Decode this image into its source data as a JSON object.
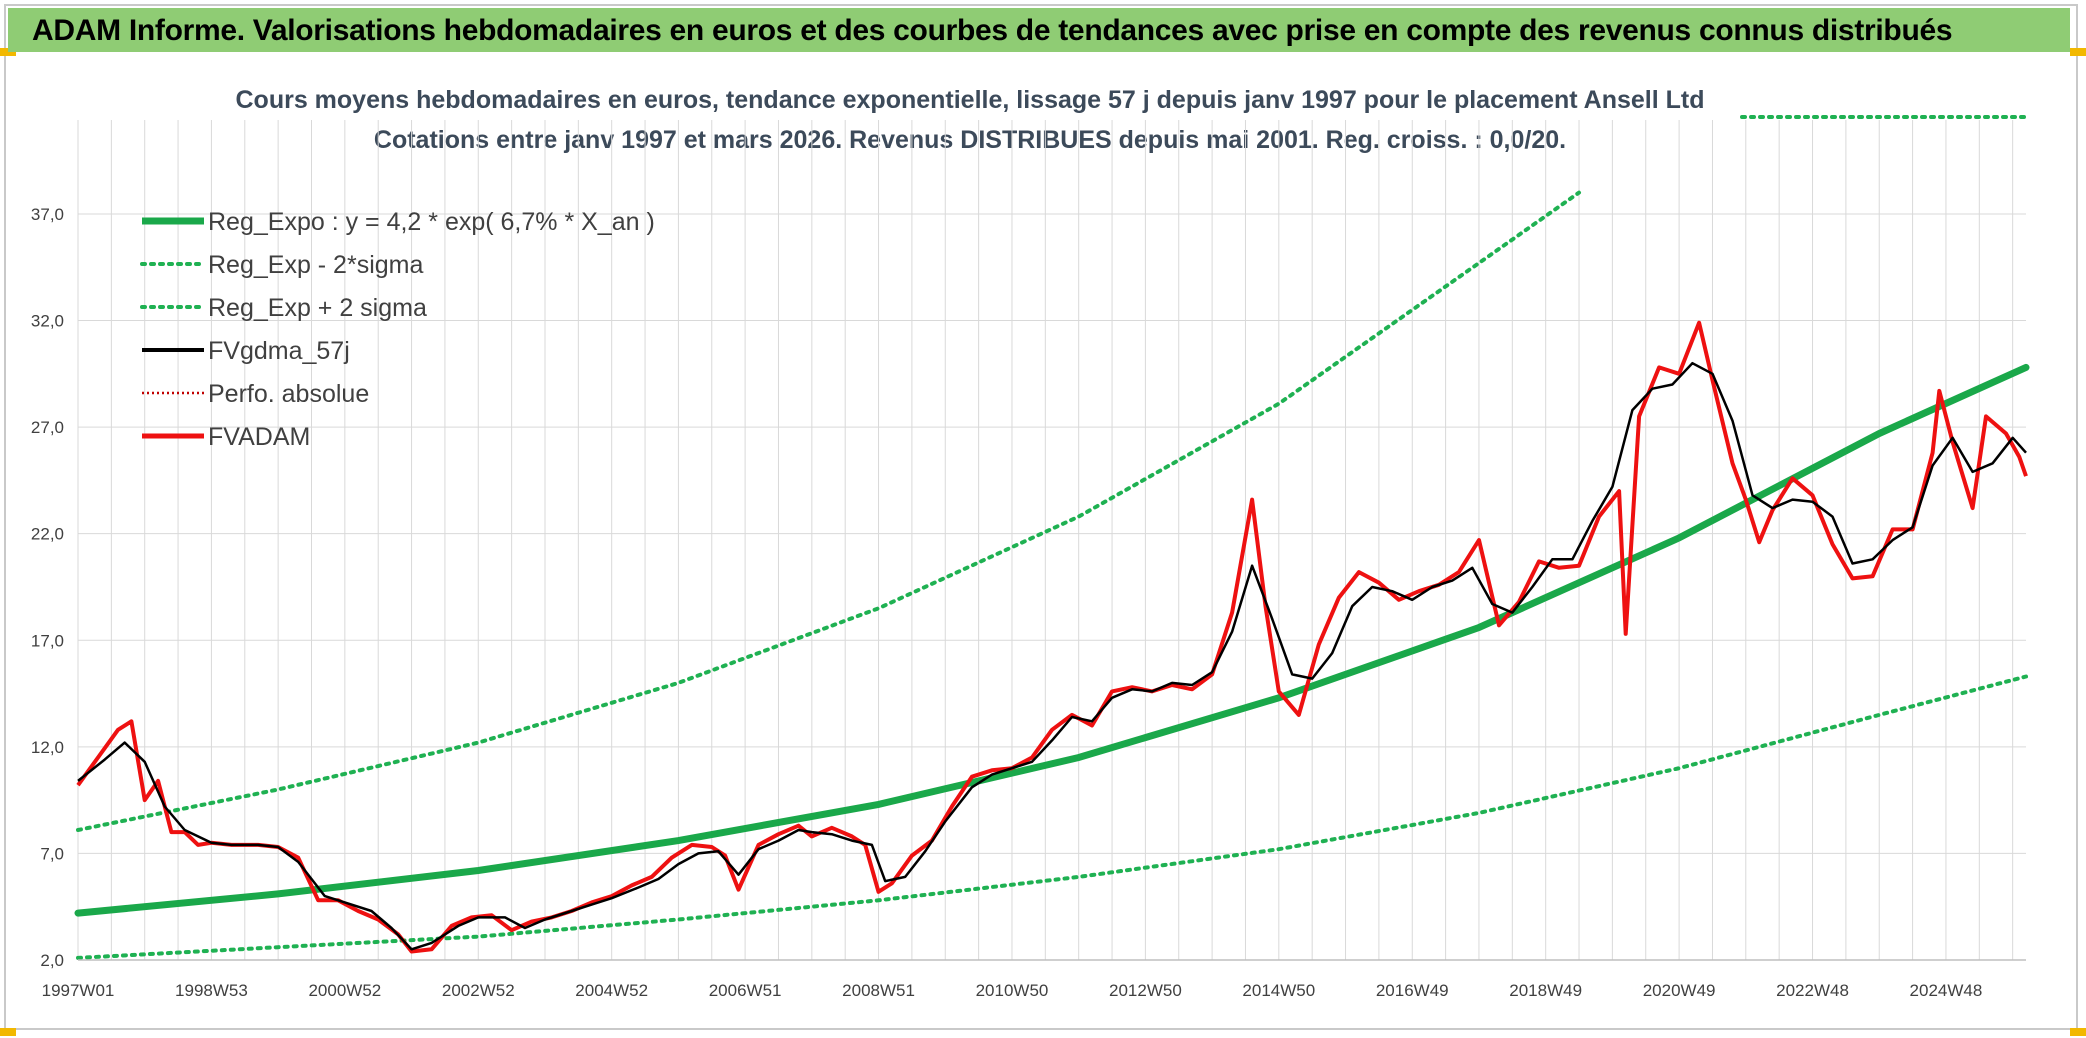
{
  "header": {
    "title": "ADAM Informe. Valorisations hebdomadaires en euros et des courbes de tendances avec prise en compte des revenus connus distribués"
  },
  "colors": {
    "banner": "#8fcc74",
    "trend": "#1aa84a",
    "band": "#1fb152",
    "smooth": "#000000",
    "price": "#ee1111",
    "perf": "#c00000",
    "grid": "#d9d9d9"
  },
  "chart_data": {
    "type": "line",
    "title": "Cours moyens hebdomadaires en euros, tendance exponentielle, lissage 57 j depuis janv 1997 pour le placement Ansell Ltd",
    "subtitle": "Cotations entre janv 1997 et mars 2026. Revenus DISTRIBUES depuis mai 2001. Reg. croiss. : 0,0/20.",
    "x_range": [
      1997.0,
      2026.2
    ],
    "ylim": [
      2.0,
      40.0
    ],
    "y_ticks": [
      "2,0",
      "7,0",
      "12,0",
      "17,0",
      "22,0",
      "27,0",
      "32,0",
      "37,0"
    ],
    "y_tick_values": [
      2,
      7,
      12,
      17,
      22,
      27,
      32,
      37
    ],
    "x_ticks": [
      "1997W01",
      "1998W53",
      "2000W52",
      "2002W52",
      "2004W52",
      "2006W51",
      "2008W51",
      "2010W50",
      "2012W50",
      "2014W50",
      "2016W49",
      "2018W49",
      "2020W49",
      "2022W48",
      "2024W48"
    ],
    "x_tick_values": [
      1997.0,
      1999.0,
      2001.0,
      2003.0,
      2005.0,
      2007.0,
      2009.0,
      2011.0,
      2013.0,
      2015.0,
      2017.0,
      2019.0,
      2021.0,
      2023.0,
      2025.0
    ],
    "upper_band_right_marker": true,
    "legend": [
      {
        "key": "trend",
        "label": "Reg_Expo : y = 4,2 * exp( 6,7% *  X_an )",
        "style": "solid-thick"
      },
      {
        "key": "lower",
        "label": "Reg_Exp - 2*sigma",
        "style": "dotted"
      },
      {
        "key": "upper",
        "label": "Reg_Exp + 2 sigma",
        "style": "dotted"
      },
      {
        "key": "smooth",
        "label": "FVgdma_57j",
        "style": "solid"
      },
      {
        "key": "perf",
        "label": "Perfo. absolue",
        "style": "dotted-red"
      },
      {
        "key": "price",
        "label": "FVADAM",
        "style": "solid-red"
      }
    ],
    "series": [
      {
        "name": "Reg_Expo",
        "x": [
          1997.0,
          2000.0,
          2003.0,
          2006.0,
          2009.0,
          2012.0,
          2015.0,
          2018.0,
          2021.0,
          2024.0,
          2026.2
        ],
        "y": [
          4.2,
          5.1,
          6.2,
          7.6,
          9.3,
          11.5,
          14.3,
          17.6,
          21.8,
          26.7,
          29.8
        ]
      },
      {
        "name": "Reg_Exp - 2*sigma",
        "x": [
          1997.0,
          2000.0,
          2003.0,
          2006.0,
          2009.0,
          2012.0,
          2015.0,
          2018.0,
          2021.0,
          2024.0,
          2026.2
        ],
        "y": [
          2.1,
          2.6,
          3.1,
          3.9,
          4.8,
          5.9,
          7.2,
          8.9,
          11.0,
          13.5,
          15.3
        ]
      },
      {
        "name": "Reg_Exp + 2 sigma",
        "x": [
          1997.0,
          2000.0,
          2003.0,
          2006.0,
          2009.0,
          2012.0,
          2015.0,
          2018.0,
          2019.5
        ],
        "y": [
          8.1,
          10.0,
          12.2,
          15.0,
          18.5,
          22.8,
          28.1,
          34.7,
          38.0
        ]
      },
      {
        "name": "FVgdma_57j",
        "x": [
          1997.0,
          1997.4,
          1997.7,
          1998.0,
          1998.3,
          1998.6,
          1999.0,
          1999.3,
          1999.7,
          2000.0,
          2000.3,
          2000.7,
          2001.0,
          2001.4,
          2001.7,
          2002.0,
          2002.3,
          2002.7,
          2003.0,
          2003.4,
          2003.7,
          2004.0,
          2004.4,
          2004.7,
          2005.0,
          2005.4,
          2005.7,
          2006.0,
          2006.3,
          2006.6,
          2006.9,
          2007.2,
          2007.5,
          2007.8,
          2008.0,
          2008.3,
          2008.6,
          2008.9,
          2009.1,
          2009.4,
          2009.7,
          2010.0,
          2010.4,
          2010.7,
          2011.0,
          2011.3,
          2011.6,
          2011.9,
          2012.2,
          2012.5,
          2012.8,
          2013.1,
          2013.4,
          2013.7,
          2014.0,
          2014.3,
          2014.6,
          2014.9,
          2015.2,
          2015.5,
          2015.8,
          2016.1,
          2016.4,
          2016.7,
          2017.0,
          2017.3,
          2017.6,
          2017.9,
          2018.2,
          2018.5,
          2018.8,
          2019.1,
          2019.4,
          2019.7,
          2020.0,
          2020.3,
          2020.6,
          2020.9,
          2021.2,
          2021.5,
          2021.8,
          2022.1,
          2022.4,
          2022.7,
          2023.0,
          2023.3,
          2023.6,
          2023.9,
          2024.2,
          2024.5,
          2024.8,
          2025.1,
          2025.4,
          2025.7,
          2026.0,
          2026.2
        ],
        "y": [
          10.4,
          11.4,
          12.2,
          11.3,
          9.2,
          8.1,
          7.5,
          7.4,
          7.4,
          7.3,
          6.6,
          5.0,
          4.7,
          4.3,
          3.5,
          2.5,
          2.8,
          3.6,
          4.0,
          4.0,
          3.5,
          3.9,
          4.3,
          4.6,
          4.9,
          5.4,
          5.8,
          6.5,
          7.0,
          7.1,
          6.0,
          7.2,
          7.6,
          8.1,
          8.0,
          7.9,
          7.6,
          7.4,
          5.7,
          5.9,
          7.1,
          8.5,
          10.1,
          10.7,
          11.0,
          11.3,
          12.3,
          13.4,
          13.2,
          14.3,
          14.7,
          14.6,
          15.0,
          14.9,
          15.5,
          17.4,
          20.5,
          18.0,
          15.4,
          15.2,
          16.4,
          18.6,
          19.5,
          19.3,
          18.9,
          19.5,
          19.8,
          20.4,
          18.7,
          18.3,
          19.5,
          20.8,
          20.8,
          22.6,
          24.2,
          27.8,
          28.8,
          29.0,
          30.0,
          29.5,
          27.3,
          23.8,
          23.2,
          23.6,
          23.5,
          22.8,
          20.6,
          20.8,
          21.7,
          22.3,
          25.2,
          26.5,
          24.9,
          25.3,
          26.5,
          25.8
        ]
      },
      {
        "name": "FVADAM",
        "x": [
          1997.0,
          1997.3,
          1997.6,
          1997.8,
          1998.0,
          1998.2,
          1998.4,
          1998.6,
          1998.8,
          1999.0,
          1999.3,
          1999.7,
          2000.0,
          2000.3,
          2000.6,
          2000.9,
          2001.2,
          2001.5,
          2001.8,
          2002.0,
          2002.3,
          2002.6,
          2002.9,
          2003.2,
          2003.5,
          2003.8,
          2004.1,
          2004.4,
          2004.7,
          2005.0,
          2005.3,
          2005.6,
          2005.9,
          2006.2,
          2006.5,
          2006.7,
          2006.9,
          2007.2,
          2007.5,
          2007.8,
          2008.0,
          2008.3,
          2008.6,
          2008.8,
          2009.0,
          2009.2,
          2009.5,
          2009.8,
          2010.1,
          2010.4,
          2010.7,
          2011.0,
          2011.3,
          2011.6,
          2011.9,
          2012.2,
          2012.5,
          2012.8,
          2013.1,
          2013.4,
          2013.7,
          2014.0,
          2014.3,
          2014.6,
          2014.8,
          2015.0,
          2015.3,
          2015.6,
          2015.9,
          2016.2,
          2016.5,
          2016.8,
          2017.1,
          2017.4,
          2017.7,
          2018.0,
          2018.3,
          2018.6,
          2018.9,
          2019.2,
          2019.5,
          2019.8,
          2020.1,
          2020.2,
          2020.4,
          2020.7,
          2021.0,
          2021.3,
          2021.5,
          2021.8,
          2022.0,
          2022.2,
          2022.4,
          2022.7,
          2023.0,
          2023.3,
          2023.6,
          2023.9,
          2024.2,
          2024.5,
          2024.8,
          2024.9,
          2025.1,
          2025.4,
          2025.6,
          2025.9,
          2026.1,
          2026.2
        ],
        "y": [
          10.2,
          11.5,
          12.8,
          13.2,
          9.5,
          10.4,
          8.0,
          8.0,
          7.4,
          7.5,
          7.4,
          7.4,
          7.3,
          6.8,
          4.8,
          4.8,
          4.3,
          3.9,
          3.2,
          2.4,
          2.5,
          3.6,
          4.0,
          4.1,
          3.4,
          3.8,
          4.0,
          4.3,
          4.7,
          5.0,
          5.5,
          5.9,
          6.8,
          7.4,
          7.3,
          6.9,
          5.3,
          7.4,
          7.9,
          8.3,
          7.8,
          8.2,
          7.8,
          7.4,
          5.2,
          5.6,
          6.9,
          7.6,
          9.2,
          10.6,
          10.9,
          11.0,
          11.5,
          12.8,
          13.5,
          13.0,
          14.6,
          14.8,
          14.6,
          14.9,
          14.7,
          15.4,
          18.3,
          23.6,
          18.6,
          14.6,
          13.5,
          16.8,
          19.0,
          20.2,
          19.7,
          18.9,
          19.3,
          19.6,
          20.2,
          21.7,
          17.7,
          18.8,
          20.7,
          20.4,
          20.5,
          22.8,
          24.0,
          17.3,
          27.5,
          29.8,
          29.5,
          31.9,
          29.2,
          25.3,
          23.6,
          21.6,
          23.1,
          24.6,
          23.8,
          21.5,
          19.9,
          20.0,
          22.2,
          22.2,
          25.8,
          28.7,
          26.3,
          23.2,
          27.5,
          26.7,
          25.6,
          24.7
        ]
      }
    ]
  }
}
